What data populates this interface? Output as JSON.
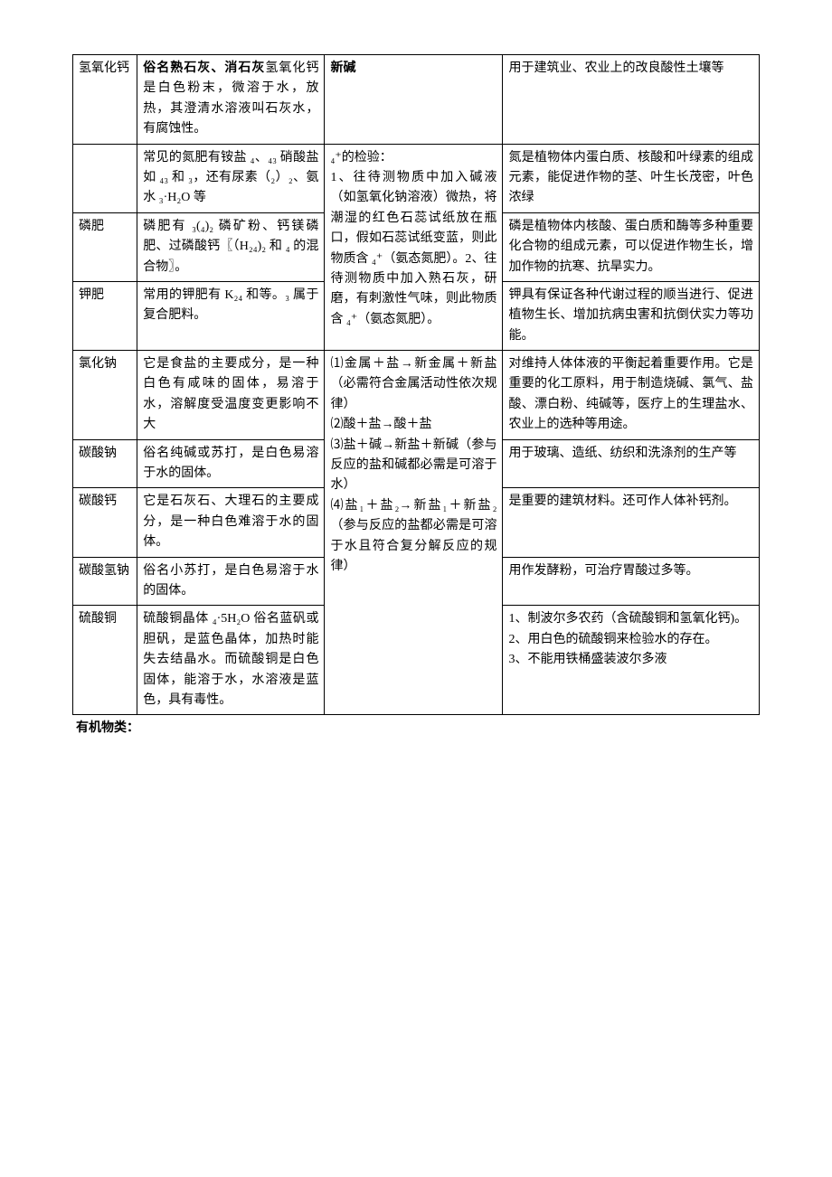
{
  "rows": [
    {
      "name": "氢氧化钙",
      "desc_prefix_bold": "俗名熟石灰、消石灰",
      "desc_rest": "氢氧化钙是白色粉末，微溶于水，放热，其澄清水溶液叫石灰水，有腐蚀性。",
      "col3_prefix_bold": "新碱",
      "col3_rest": "",
      "use": "用于建筑业、农业上的改良酸性土壤等"
    },
    {
      "name": "",
      "desc": "常见的氮肥有铵盐 ₄、₄₃ 硝酸盐如 ₄₃ 和 ₃，还有尿素（₂）₂、氨水 ₃·H₂O 等",
      "use": "氮是植物体内蛋白质、核酸和叶绿素的组成元素，能促进作物的茎、叶生长茂密，叶色浓绿"
    },
    {
      "name": "磷肥",
      "desc": "磷肥有 ₃(₄)₂ 磷矿粉、钙镁磷肥、过磷酸钙〖（H₂₄)₂ 和 ₄ 的混合物〗。",
      "use": "磷是植物体内核酸、蛋白质和酶等多种重要化合物的组成元素，可以促进作物生长，增加作物的抗寒、抗旱实力。"
    },
    {
      "name": "钾肥",
      "desc": "常用的钾肥有 K₂₄ 和等。₃ 属于复合肥料。",
      "use": "钾具有保证各种代谢过程的顺当进行、促进植物生长、增加抗病虫害和抗倒伏实力等功能。"
    },
    {
      "name": "氯化钠",
      "desc": "它是食盐的主要成分，是一种白色有咸味的固体，易溶于水，溶解度受温度变更影响不大",
      "use": "对维持人体体液的平衡起着重要作用。它是重要的化工原料，用于制造烧碱、氯气、盐酸、漂白粉、纯碱等，医疗上的生理盐水、农业上的选种等用途。"
    },
    {
      "name": "碳酸钠",
      "desc": "俗名纯碱或苏打，是白色易溶于水的固体。",
      "use": "用于玻璃、造纸、纺织和洗涤剂的生产等"
    },
    {
      "name": "碳酸钙",
      "desc": "它是石灰石、大理石的主要成分，是一种白色难溶于水的固体。",
      "use": "是重要的建筑材料。还可作人体补钙剂。"
    },
    {
      "name": "碳酸氢钠",
      "desc": "俗名小苏打，是白色易溶于水的固体。",
      "use": "用作发酵粉，可治疗胃酸过多等。"
    },
    {
      "name": "硫酸铜",
      "desc": "硫酸铜晶体 ₄·5H₂O 俗名蓝矾或胆矾，是蓝色晶体，加热时能失去结晶水。而硫酸铜是白色固体，能溶于水，水溶液是蓝色，具有毒性。",
      "use": "1、制波尔多农药（含硫酸铜和氢氧化钙)。\n2、用白色的硫酸铜来检验水的存在。\n3、不能用铁桶盛装波尔多液"
    }
  ],
  "col3_merged_a": "₄⁺的检验：\n1、往待测物质中加入碱液（如氢氧化钠溶液）微热，将潮湿的红色石蕊试纸放在瓶口，假如石蕊试纸变蓝，则此物质含 ₄⁺（氨态氮肥）。2、往待测物质中加入熟石灰，研磨，有刺激性气味，则此物质含 ₄⁺（氨态氮肥）。",
  "col3_merged_b": "⑴金属＋盐→新金属＋新盐（必需符合金属活动性依次规律）\n⑵酸＋盐→酸＋盐\n⑶盐＋碱→新盐＋新碱（参与反应的盐和碱都必需是可溶于水）\n⑷盐₁＋盐₂→新盐₁＋新盐₂（参与反应的盐都必需是可溶于水且符合复分解反应的规律）",
  "footer": "有机物类：",
  "style": {
    "font_size": 14,
    "border_color": "#000000",
    "background": "#ffffff",
    "text_color": "#000000"
  }
}
